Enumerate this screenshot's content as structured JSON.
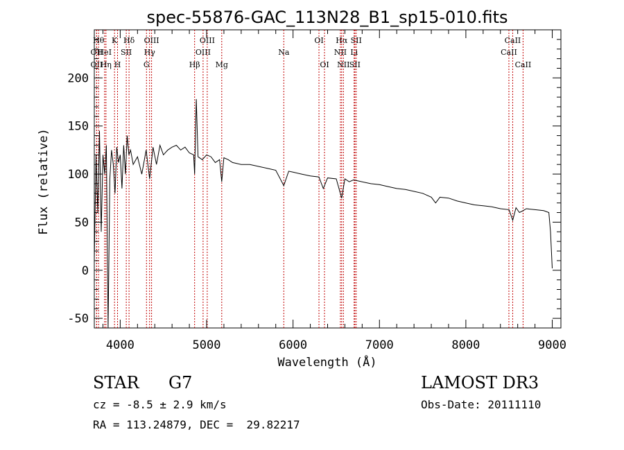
{
  "chart_data": {
    "type": "line",
    "title": "spec-55876-GAC_113N28_B1_sp15-010.fits",
    "xlabel": "Wavelength (Å)",
    "ylabel": "Flux (relative)",
    "xlim": [
      3700,
      9100
    ],
    "ylim": [
      -60,
      250
    ],
    "xticks": [
      4000,
      5000,
      6000,
      7000,
      8000,
      9000
    ],
    "yticks": [
      -50,
      0,
      50,
      100,
      150,
      200
    ],
    "grid": false,
    "series": [
      {
        "name": "flux",
        "x": [
          3700,
          3720,
          3740,
          3760,
          3780,
          3800,
          3820,
          3840,
          3860,
          3880,
          3900,
          3920,
          3940,
          3960,
          3980,
          4000,
          4020,
          4040,
          4060,
          4080,
          4100,
          4120,
          4150,
          4200,
          4250,
          4300,
          4340,
          4380,
          4420,
          4460,
          4500,
          4550,
          4600,
          4650,
          4700,
          4750,
          4800,
          4850,
          4861,
          4880,
          4900,
          4950,
          5000,
          5050,
          5100,
          5150,
          5175,
          5200,
          5250,
          5300,
          5400,
          5500,
          5600,
          5700,
          5800,
          5893,
          5950,
          6000,
          6100,
          6200,
          6300,
          6350,
          6400,
          6500,
          6563,
          6600,
          6650,
          6700,
          6800,
          6900,
          7000,
          7100,
          7200,
          7300,
          7400,
          7500,
          7600,
          7650,
          7700,
          7800,
          7900,
          8000,
          8100,
          8200,
          8300,
          8400,
          8500,
          8542,
          8580,
          8620,
          8662,
          8700,
          8800,
          8900,
          8960,
          8980,
          9000
        ],
        "y": [
          10,
          120,
          60,
          145,
          40,
          120,
          100,
          130,
          -60,
          95,
          125,
          110,
          80,
          128,
          112,
          120,
          85,
          130,
          100,
          140,
          120,
          125,
          110,
          118,
          100,
          125,
          95,
          128,
          110,
          130,
          120,
          125,
          128,
          130,
          125,
          128,
          122,
          120,
          100,
          178,
          118,
          115,
          120,
          118,
          112,
          115,
          92,
          117,
          115,
          112,
          110,
          110,
          108,
          106,
          104,
          88,
          103,
          102,
          100,
          98,
          97,
          85,
          96,
          95,
          75,
          95,
          92,
          94,
          92,
          90,
          89,
          87,
          85,
          84,
          82,
          80,
          76,
          70,
          76,
          75,
          72,
          70,
          68,
          67,
          66,
          64,
          63,
          52,
          65,
          60,
          62,
          64,
          63,
          62,
          60,
          40,
          2
        ]
      }
    ],
    "lines": [
      {
        "name": "OII",
        "w": 3727,
        "row": 2
      },
      {
        "name": "OII",
        "w": 3727,
        "row": 3
      },
      {
        "name": "Hθ",
        "w": 3750,
        "row": 1
      },
      {
        "name": "HeI",
        "w": 3819,
        "row": 2
      },
      {
        "name": "Hη",
        "w": 3835,
        "row": 3
      },
      {
        "name": "K",
        "w": 3934,
        "row": 1
      },
      {
        "name": "SII",
        "w": 4070,
        "row": 2
      },
      {
        "name": "H",
        "w": 3969,
        "row": 3
      },
      {
        "name": "Hδ",
        "w": 4102,
        "row": 1
      },
      {
        "name": "OIII",
        "w": 4363,
        "row": 1
      },
      {
        "name": "Hγ",
        "w": 4340,
        "row": 2
      },
      {
        "name": "G",
        "w": 4304,
        "row": 3
      },
      {
        "name": "Hβ",
        "w": 4861,
        "row": 3
      },
      {
        "name": "OIII",
        "w": 5007,
        "row": 1
      },
      {
        "name": "OIII",
        "w": 4959,
        "row": 2
      },
      {
        "name": "Mg",
        "w": 5175,
        "row": 3
      },
      {
        "name": "Na",
        "w": 5893,
        "row": 2
      },
      {
        "name": "OI",
        "w": 6300,
        "row": 1
      },
      {
        "name": "OI",
        "w": 6364,
        "row": 3
      },
      {
        "name": "Hα",
        "w": 6563,
        "row": 1
      },
      {
        "name": "NII",
        "w": 6548,
        "row": 2
      },
      {
        "name": "NII",
        "w": 6583,
        "row": 3
      },
      {
        "name": "SII",
        "w": 6731,
        "row": 1
      },
      {
        "name": "Li",
        "w": 6707,
        "row": 2
      },
      {
        "name": "SII",
        "w": 6716,
        "row": 3
      },
      {
        "name": "CaII",
        "w": 8542,
        "row": 1
      },
      {
        "name": "CaII",
        "w": 8498,
        "row": 2
      },
      {
        "name": "CaII",
        "w": 8662,
        "row": 3
      }
    ]
  },
  "info": {
    "class": "STAR",
    "subclass": "G7",
    "survey": "LAMOST DR3",
    "cz": "cz = -8.5 ± 2.9 km/s",
    "obs_date": "Obs-Date: 20111110",
    "coords": "RA = 113.24879, DEC =  29.82217"
  }
}
